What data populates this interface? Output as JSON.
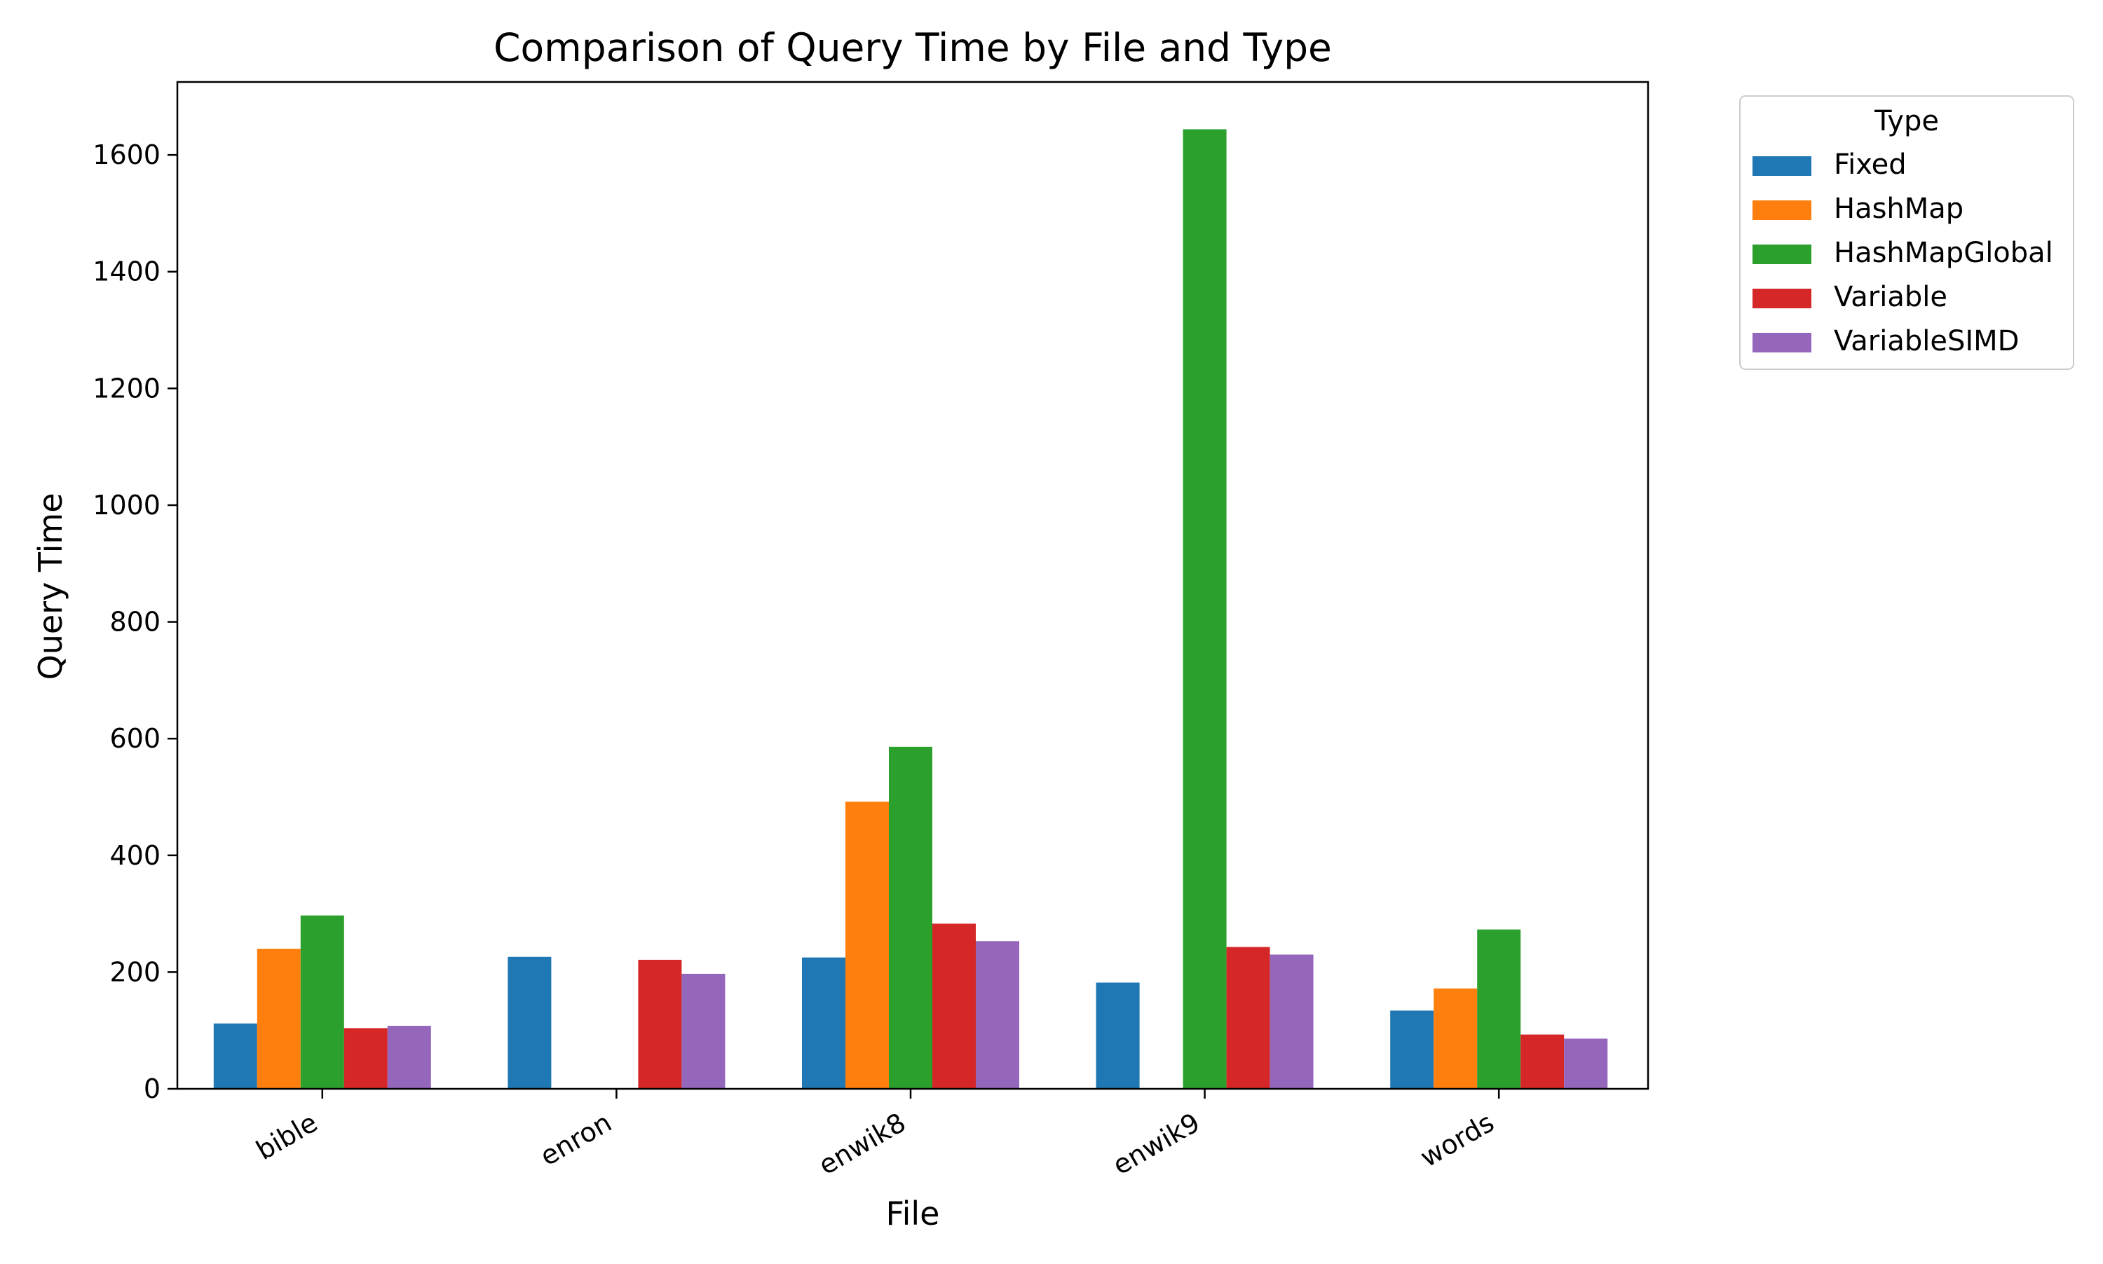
{
  "chart_data": {
    "type": "bar",
    "title": "Comparison of Query Time by File and Type",
    "xlabel": "File",
    "ylabel": "Query Time",
    "categories": [
      "bible",
      "enron",
      "enwik8",
      "enwik9",
      "words"
    ],
    "ylim": [
      0,
      1725
    ],
    "yticks": [
      0,
      200,
      400,
      600,
      800,
      1000,
      1200,
      1400,
      1600
    ],
    "legend_title": "Type",
    "legend_position": "outside-top-right",
    "grid": false,
    "series": [
      {
        "name": "Fixed",
        "color": "#1f77b4",
        "values": [
          112,
          226,
          225,
          182,
          134
        ]
      },
      {
        "name": "HashMap",
        "color": "#ff7f0e",
        "values": [
          240,
          null,
          492,
          null,
          172
        ]
      },
      {
        "name": "HashMapGlobal",
        "color": "#2ca02c",
        "values": [
          297,
          null,
          586,
          1644,
          273
        ]
      },
      {
        "name": "Variable",
        "color": "#d62728",
        "values": [
          104,
          221,
          283,
          243,
          93
        ]
      },
      {
        "name": "VariableSIMD",
        "color": "#9467bd",
        "values": [
          108,
          197,
          253,
          230,
          86
        ]
      }
    ]
  }
}
